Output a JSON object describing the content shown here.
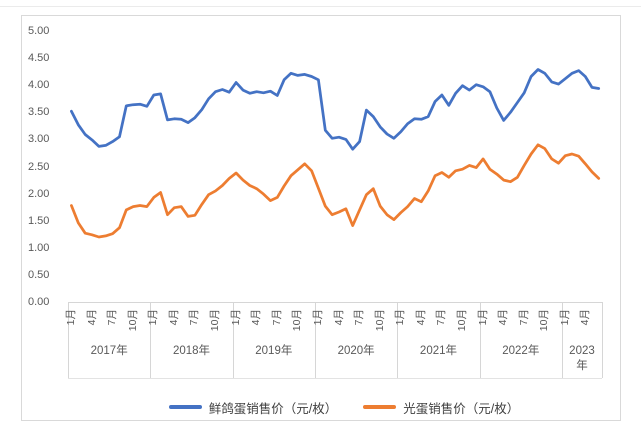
{
  "chart_data": {
    "type": "line",
    "title": "",
    "y_axis": {
      "min": 0,
      "max": 5,
      "step": 0.5,
      "tick_labels": [
        "5.00",
        "4.50",
        "4.00",
        "3.50",
        "3.00",
        "2.50",
        "2.00",
        "1.50",
        "1.00",
        "0.50",
        "0.00"
      ]
    },
    "x_axis": {
      "tick_month_indices": [
        0,
        3,
        6,
        9
      ],
      "month_tick_labels": [
        "1月",
        "4月",
        "7月",
        "10月"
      ],
      "year_groups": [
        {
          "label": "2017年",
          "label_lines": [
            "2017年"
          ],
          "months": 12
        },
        {
          "label": "2018年",
          "label_lines": [
            "2018年"
          ],
          "months": 12
        },
        {
          "label": "2019年",
          "label_lines": [
            "2019年"
          ],
          "months": 12
        },
        {
          "label": "2020年",
          "label_lines": [
            "2020年"
          ],
          "months": 12
        },
        {
          "label": "2021年",
          "label_lines": [
            "2021年"
          ],
          "months": 12
        },
        {
          "label": "2022年",
          "label_lines": [
            "2022年"
          ],
          "months": 12
        },
        {
          "label": "2023年",
          "label_lines": [
            "2023",
            "年"
          ],
          "months": 6
        }
      ]
    },
    "series": [
      {
        "name": "鲜鸽蛋销售价（元/枚）",
        "color": "#4472C4",
        "values": [
          3.52,
          3.27,
          3.09,
          2.99,
          2.87,
          2.89,
          2.96,
          3.05,
          3.62,
          3.64,
          3.65,
          3.61,
          3.82,
          3.84,
          3.36,
          3.38,
          3.37,
          3.31,
          3.4,
          3.55,
          3.75,
          3.88,
          3.92,
          3.87,
          4.05,
          3.91,
          3.85,
          3.88,
          3.86,
          3.89,
          3.81,
          4.1,
          4.22,
          4.18,
          4.2,
          4.16,
          4.1,
          3.17,
          3.02,
          3.04,
          3.0,
          2.82,
          2.96,
          3.54,
          3.42,
          3.23,
          3.1,
          3.02,
          3.14,
          3.29,
          3.38,
          3.37,
          3.42,
          3.7,
          3.82,
          3.63,
          3.85,
          3.99,
          3.91,
          4.01,
          3.97,
          3.88,
          3.58,
          3.35,
          3.5,
          3.68,
          3.86,
          4.16,
          4.29,
          4.22,
          4.06,
          4.02,
          4.12,
          4.22,
          4.27,
          4.16,
          3.96,
          3.94
        ]
      },
      {
        "name": "光蛋销售价（元/枚）",
        "color": "#ED7D31",
        "values": [
          1.78,
          1.46,
          1.27,
          1.24,
          1.2,
          1.22,
          1.26,
          1.37,
          1.7,
          1.76,
          1.78,
          1.76,
          1.93,
          2.02,
          1.61,
          1.74,
          1.76,
          1.58,
          1.6,
          1.8,
          1.98,
          2.05,
          2.15,
          2.28,
          2.38,
          2.25,
          2.15,
          2.09,
          1.99,
          1.87,
          1.93,
          2.14,
          2.33,
          2.44,
          2.55,
          2.42,
          2.1,
          1.77,
          1.61,
          1.66,
          1.72,
          1.41,
          1.7,
          1.98,
          2.09,
          1.77,
          1.61,
          1.52,
          1.65,
          1.76,
          1.91,
          1.85,
          2.05,
          2.33,
          2.39,
          2.3,
          2.42,
          2.45,
          2.52,
          2.48,
          2.64,
          2.45,
          2.36,
          2.25,
          2.22,
          2.3,
          2.52,
          2.73,
          2.9,
          2.83,
          2.64,
          2.56,
          2.7,
          2.73,
          2.69,
          2.55,
          2.4,
          2.28
        ]
      }
    ],
    "legend": {
      "position": "bottom",
      "entries": [
        "鲜鸽蛋销售价（元/枚）",
        "光蛋销售价（元/枚）"
      ]
    },
    "grid": "off"
  },
  "colors": {
    "axis_text": "#595959",
    "card_border": "#d9d9d9",
    "table_line": "#d6d6d6",
    "legend_text": "#404040"
  }
}
